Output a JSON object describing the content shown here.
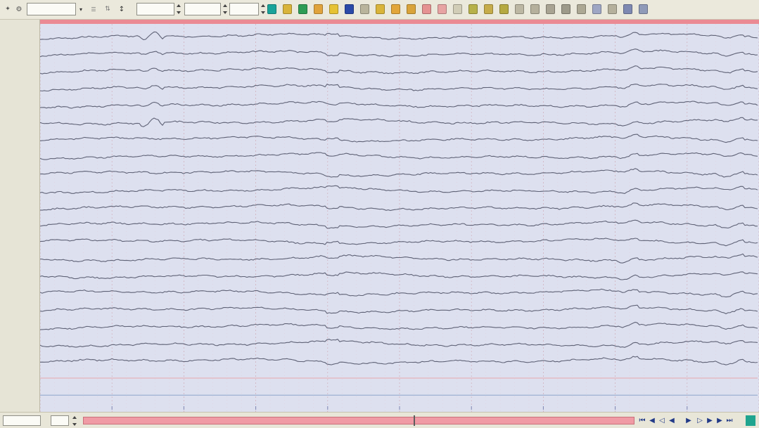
{
  "toolbar": {
    "montage_value": "",
    "sensitivity_value": "",
    "lowfilter_value": "",
    "highfilter_value": "",
    "timebase_value": "",
    "left_tools": [
      {
        "name": "pin-icon",
        "glyph": "✦",
        "color": "#5a5a5a"
      },
      {
        "name": "settings-icon",
        "glyph": "⚙",
        "color": "#5a5a5a"
      }
    ],
    "right_tools": [
      {
        "name": "display-mode-icon",
        "color": "#1aa39a"
      },
      {
        "name": "grid-icon",
        "color": "#d9b43a"
      },
      {
        "name": "list-icon",
        "color": "#2e9c55"
      },
      {
        "name": "folder-icon",
        "color": "#e0a33c"
      },
      {
        "name": "marker-icon",
        "color": "#e6c233"
      },
      {
        "name": "columns-icon",
        "color": "#2b4aa8"
      },
      {
        "name": "bars-icon",
        "color": "#b9b49c"
      },
      {
        "name": "event-icon",
        "color": "#d9b43a"
      },
      {
        "name": "filter-icon",
        "color": "#e2a63a"
      },
      {
        "name": "camera-icon",
        "color": "#d9a33a"
      },
      {
        "name": "print-icon",
        "color": "#e59292"
      },
      {
        "name": "copy-icon",
        "color": "#e7a3a3"
      },
      {
        "name": "measure-icon",
        "color": "#d1cdb7"
      },
      {
        "name": "pencil-icon",
        "color": "#b7b14a"
      },
      {
        "name": "cursor-icon",
        "color": "#c6ac4a"
      },
      {
        "name": "pen-icon",
        "color": "#b5a942"
      },
      {
        "name": "arrow-icon",
        "color": "#bcb7a3"
      },
      {
        "name": "zoom-icon",
        "color": "#b5b09c"
      },
      {
        "name": "search-icon",
        "color": "#a8a392"
      },
      {
        "name": "frame-icon",
        "color": "#9d9a8a"
      },
      {
        "name": "table-icon",
        "color": "#aca894"
      },
      {
        "name": "chart-icon",
        "color": "#9ea6c4"
      },
      {
        "name": "minus-icon",
        "color": "#b5b09c"
      },
      {
        "name": "export-icon",
        "color": "#7e89b2"
      },
      {
        "name": "image-icon",
        "color": "#8f9ab8"
      }
    ]
  },
  "channels": [
    {
      "label": "",
      "color": "#5f6276"
    },
    {
      "label": "",
      "color": "#5f6276"
    },
    {
      "label": "",
      "color": "#5f6276"
    },
    {
      "label": "",
      "color": "#5f6276"
    },
    {
      "label": "",
      "color": "#5f6276"
    },
    {
      "label": "",
      "color": "#5f6276"
    },
    {
      "label": "",
      "color": "#5f6276"
    },
    {
      "label": "",
      "color": "#5f6276"
    },
    {
      "label": "",
      "color": "#5f6276"
    },
    {
      "label": "",
      "color": "#5f6276"
    },
    {
      "label": "",
      "color": "#5f6276"
    },
    {
      "label": "",
      "color": "#5f6276"
    },
    {
      "label": "",
      "color": "#5f6276"
    },
    {
      "label": "",
      "color": "#5f6276"
    },
    {
      "label": "",
      "color": "#5f6276"
    },
    {
      "label": "",
      "color": "#5f6276"
    },
    {
      "label": "",
      "color": "#5f6276"
    },
    {
      "label": "",
      "color": "#5f6276"
    },
    {
      "label": "",
      "color": "#5f6276"
    },
    {
      "label": "",
      "color": "#5f6276"
    },
    {
      "label": "",
      "color": "#e8a7ad"
    },
    {
      "label": "",
      "color": "#8ea6cc"
    }
  ],
  "colors": {
    "trace_background": "#dde0ef",
    "grid_line": "#c79aa6",
    "ruler": "#eb8a94",
    "timeline": "#f09ba5"
  },
  "bottom": {
    "page_value": "",
    "speed_value": "",
    "timeline_label": "",
    "timeline_position": 0.6,
    "nav_buttons": [
      {
        "name": "first-page-icon",
        "glyph": "⏮"
      },
      {
        "name": "prev-section-icon",
        "glyph": "◀"
      },
      {
        "name": "prev-page-icon",
        "glyph": "◁"
      },
      {
        "name": "step-back-icon",
        "glyph": "◀"
      },
      {
        "name": "play-icon",
        "glyph": "▶"
      },
      {
        "name": "step-forward-icon",
        "glyph": "▷"
      },
      {
        "name": "next-page-icon",
        "glyph": "▶"
      },
      {
        "name": "next-section-icon",
        "glyph": "▶"
      },
      {
        "name": "last-page-icon",
        "glyph": "⏭"
      }
    ]
  }
}
